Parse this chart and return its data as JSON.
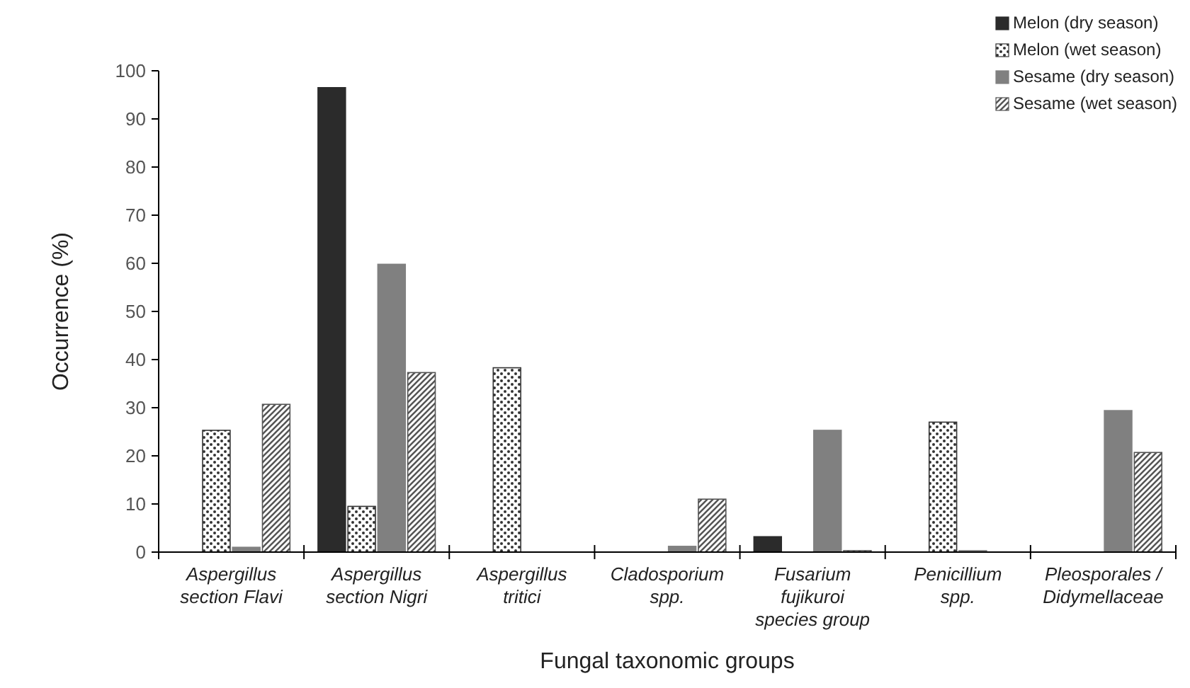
{
  "chart_data": {
    "type": "bar",
    "xlabel": "Fungal taxonomic groups",
    "ylabel": "Occurrence (%)",
    "categories": [
      "Aspergillus section Flavi",
      "Aspergillus section Nigri",
      "Aspergillus tritici",
      "Cladosporium spp.",
      "Fusarium fujikuroi species group",
      "Penicillium spp.",
      "Pleosporales / Didymellaceae"
    ],
    "series": [
      {
        "name": "Melon (dry season)",
        "color": "#2b2b2b",
        "values": [
          0,
          96.5,
          0,
          0,
          3.2,
          0,
          0
        ]
      },
      {
        "name": "Melon (wet season)",
        "color": "#333333",
        "values": [
          25.3,
          9.5,
          38.3,
          0,
          0,
          27,
          0
        ]
      },
      {
        "name": "Sesame (dry season)",
        "color": "#808080",
        "values": [
          1,
          59.8,
          0,
          1.2,
          25.3,
          0.3,
          29.4
        ]
      },
      {
        "name": "Sesame (wet season)",
        "color": "#555555",
        "values": [
          30.7,
          37.3,
          0,
          11,
          0.3,
          0,
          20.7
        ]
      }
    ],
    "ylim": [
      0,
      100
    ],
    "yticks": [
      0,
      10,
      20,
      30,
      40,
      50,
      60,
      70,
      80,
      90,
      100
    ],
    "legend": "top right"
  }
}
